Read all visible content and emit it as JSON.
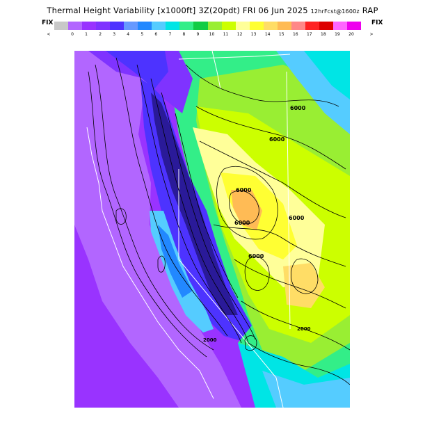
{
  "header": {
    "title_main": "Thermal Height Variability",
    "title_units": "[x1000ft]",
    "title_time": "3Z(20pdt) FRI 06 Jun 2025",
    "title_fcst": "12hrFcst@1600z",
    "title_model": "RAP"
  },
  "legend": {
    "fix_left": "FIX",
    "fix_right": "FIX",
    "tick_labels": [
      "<",
      "0",
      "1",
      "2",
      "3",
      "4",
      "5",
      "6",
      "7",
      "8",
      "9",
      "10",
      "11",
      "12",
      "13",
      "14",
      "15",
      "16",
      "17",
      "18",
      "19",
      "20",
      ">"
    ],
    "colors": [
      "#c8c8c8",
      "#b266ff",
      "#9933ff",
      "#7f33ff",
      "#4d33ff",
      "#6699ff",
      "#2288ff",
      "#55ccff",
      "#00e5e5",
      "#33ee88",
      "#11cc44",
      "#99ee33",
      "#ccff00",
      "#ffff99",
      "#ffff33",
      "#ffdd66",
      "#ffbb55",
      "#ff8888",
      "#ff2222",
      "#dd0000",
      "#ff66ff",
      "#ee00ee"
    ]
  },
  "map": {
    "contour_labels": [
      "6000",
      "6000",
      "6000",
      "6000",
      "6000",
      "6000",
      "2000",
      "2000"
    ]
  }
}
